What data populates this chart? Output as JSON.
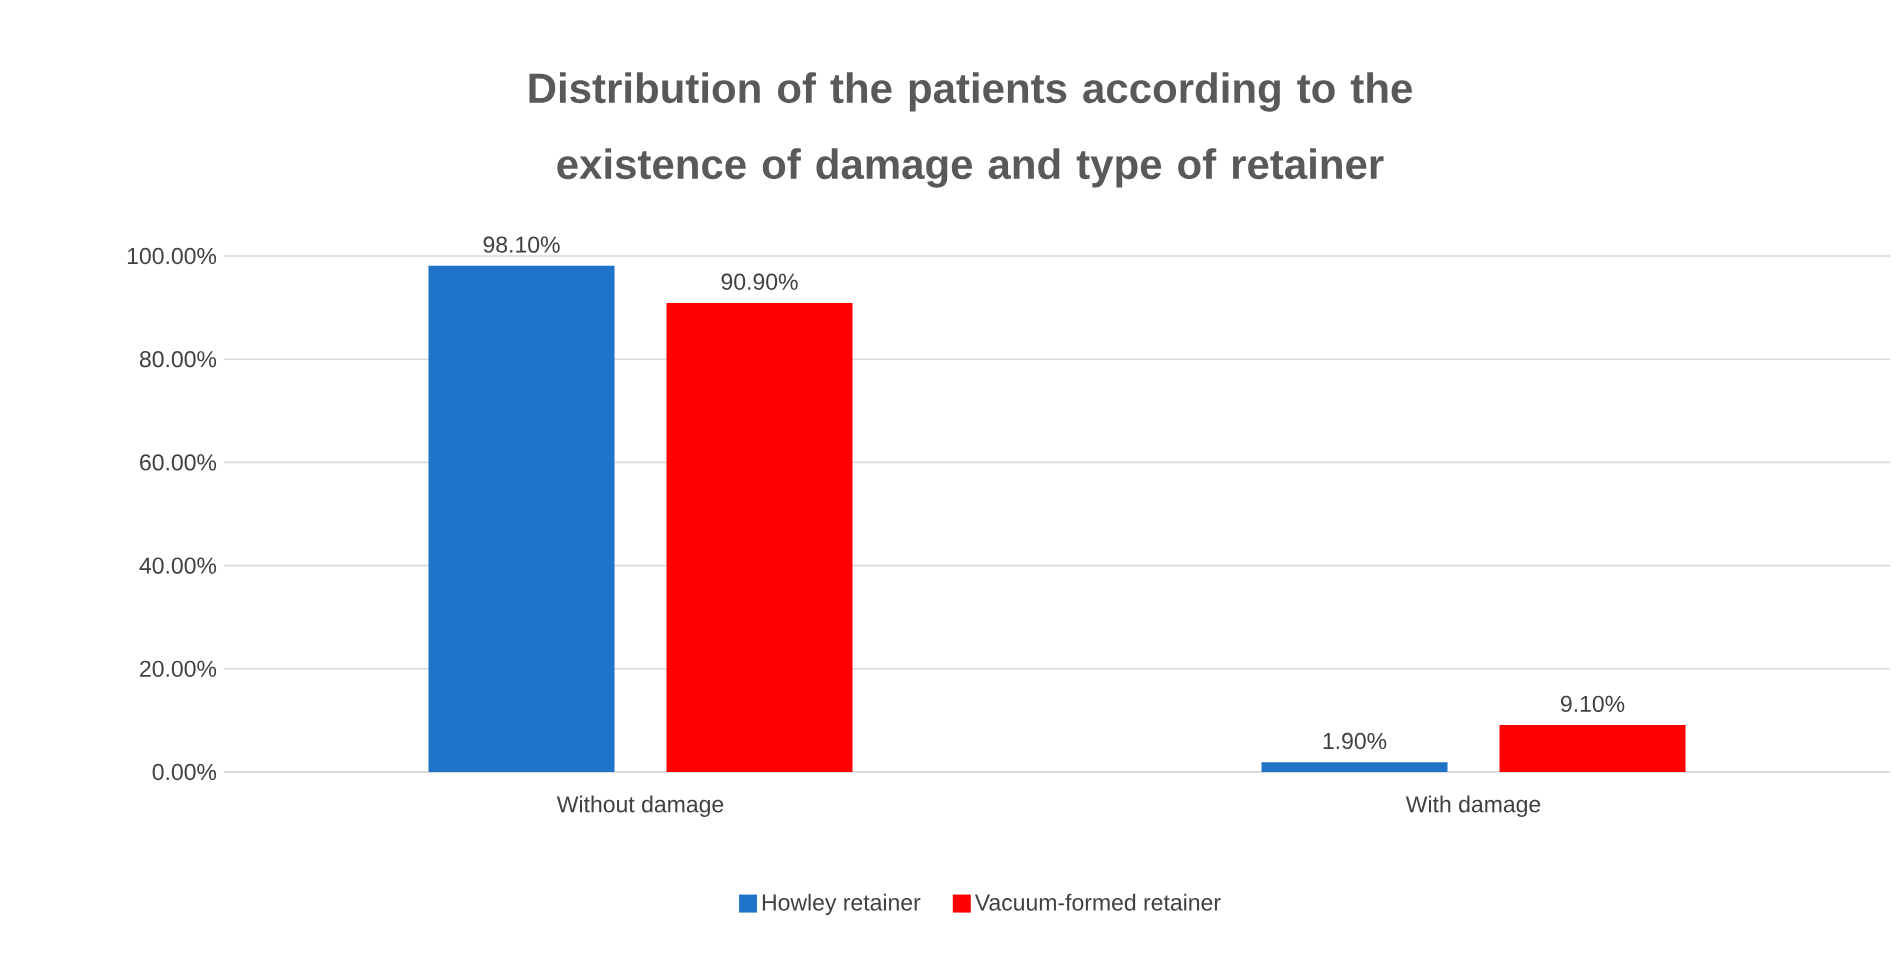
{
  "chart_data": {
    "type": "bar",
    "title": "Distribution of the patients according to the existence of damage and type of retainer",
    "categories": [
      "Without damage",
      "With damage"
    ],
    "series": [
      {
        "name": "Howley retainer",
        "color": "#1f73c9",
        "values": [
          98.1,
          1.9
        ],
        "value_labels": [
          "98.10%",
          "1.90%"
        ]
      },
      {
        "name": "Vacuum-formed retainer",
        "color": "#ff0000",
        "values": [
          90.9,
          9.1
        ],
        "value_labels": [
          "90.90%",
          "9.10%"
        ]
      }
    ],
    "ylim": [
      0,
      100
    ],
    "yticks": [
      {
        "value": 0,
        "label": "0.00%"
      },
      {
        "value": 20,
        "label": "20.00%"
      },
      {
        "value": 40,
        "label": "40.00%"
      },
      {
        "value": 60,
        "label": "60.00%"
      },
      {
        "value": 80,
        "label": "80.00%"
      },
      {
        "value": 100,
        "label": "100.00%"
      }
    ],
    "grid": "y",
    "legend": "bottom"
  }
}
